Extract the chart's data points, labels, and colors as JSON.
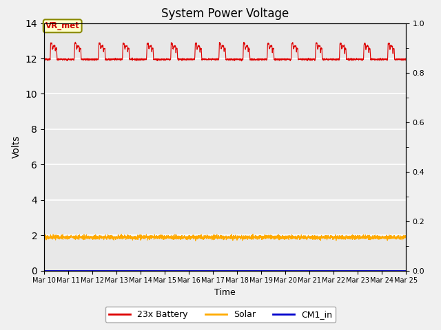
{
  "title": "System Power Voltage",
  "xlabel": "Time",
  "ylabel": "Volts",
  "background_color": "#e8e8e8",
  "fig_facecolor": "#f0f0f0",
  "x_start_day": 10,
  "x_end_day": 25,
  "x_ticks": [
    10,
    11,
    12,
    13,
    14,
    15,
    16,
    17,
    18,
    19,
    20,
    21,
    22,
    23,
    24,
    25
  ],
  "x_tick_labels": [
    "Mar 10",
    "Mar 11",
    "Mar 12",
    "Mar 13",
    "Mar 14",
    "Mar 15",
    "Mar 16",
    "Mar 17",
    "Mar 18",
    "Mar 19",
    "Mar 20",
    "Mar 21",
    "Mar 22",
    "Mar 23",
    "Mar 24",
    "Mar 25"
  ],
  "ylim_left": [
    0,
    14
  ],
  "ylim_right": [
    0.0,
    1.0
  ],
  "yticks_left": [
    0,
    2,
    4,
    6,
    8,
    10,
    12,
    14
  ],
  "yticks_right": [
    0.0,
    0.2,
    0.4,
    0.6,
    0.8,
    1.0
  ],
  "battery_color": "#dd0000",
  "solar_color": "#ffaa00",
  "cm1_color": "#0000cc",
  "annotation_text": "VR_met",
  "annotation_box_color": "#ffffcc",
  "annotation_border_color": "#888800",
  "legend_labels": [
    "23x Battery",
    "Solar",
    "CM1_in"
  ],
  "grid_color": "#ffffff",
  "num_days": 15,
  "battery_base": 11.95,
  "battery_peak": 12.55,
  "battery_spike": 12.85,
  "solar_base": 1.88,
  "solar_std": 0.06
}
